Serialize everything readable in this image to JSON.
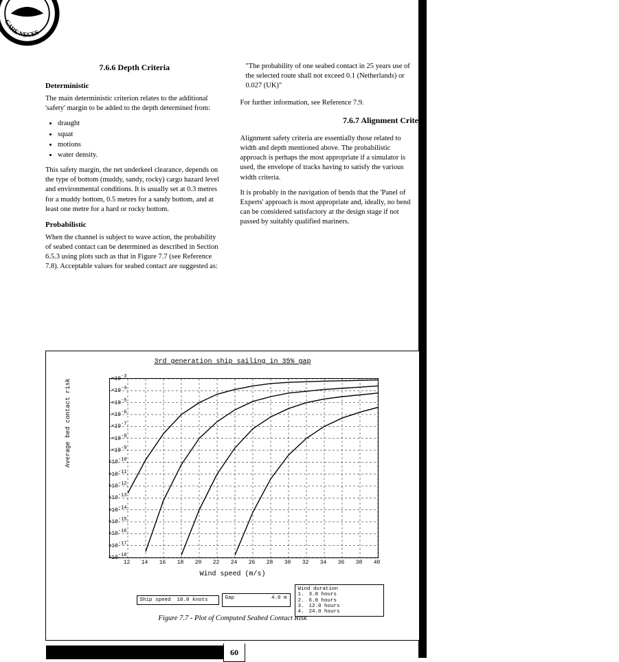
{
  "sections": {
    "depth": {
      "number": "7.6.6 Depth Criteria",
      "deterministic_heading": "Deterministic",
      "deterministic_p1": "The main deterministic criterion relates to the additional 'safety' margin to be added to the depth determined from:",
      "bullets": [
        "draught",
        "squat",
        "motions",
        "water density."
      ],
      "deterministic_p2": "This safety margin, the net underkeel clearance, depends on the type of bottom (muddy, sandy, rocky) cargo hazard level and environmental conditions. It is usually set at 0.3 metres for a muddy bottom, 0.5 metres for a sandy bottom, and at least one metre for a hard or rocky bottom.",
      "probabilistic_heading": "Probabilistic",
      "probabilistic_p1": "When the channel is subject to wave action, the probability of seabed contact can be determined as described in Section 6.5.3 using plots such as that in Figure 7.7 (see Reference 7.8). Acceptable values for seabed contact are suggested as:",
      "quote": "\"The probability of one seabed contact in 25 years use of the selected route shall not exceed 0.1 (Netherlands) or 0.027 (UK)\"",
      "ref_line": "For further information, see Reference 7.9."
    },
    "alignment": {
      "number": "7.6.7 Alignment Crite",
      "p1": "Alignment safety criteria are essentially those related to width and depth mentioned above. The probabilistic approach is perhaps the most appropriate if a simulator is used, the envelope of tracks having to satisfy the various width criteria.",
      "p2": "It is probably in the navigation of bends that the 'Panel of Experts' approach is most appropriate and, ideally, no bend can be considered satisfactory at the design stage if not passed by suitably qualified mariners."
    }
  },
  "figure": {
    "title": "3rd generation ship sailing in 35% gap",
    "caption": "Figure 7.7 - Plot of Computed Seabed Contact Risk",
    "chart": {
      "type": "line",
      "xlabel": "Wind speed (m/s)",
      "ylabel": "Average bed contact risk",
      "xlim": [
        10,
        40
      ],
      "xticks": [
        12,
        14,
        16,
        18,
        20,
        22,
        24,
        26,
        28,
        30,
        32,
        34,
        36,
        38,
        40
      ],
      "y_exponents": [
        -3,
        -4,
        -5,
        -6,
        -7,
        -8,
        -9,
        -10,
        -11,
        -12,
        -13,
        -14,
        -15,
        -16,
        -17,
        -18
      ],
      "line_color": "#000000",
      "grid_color": "#000000",
      "grid_dash": "3,3",
      "background_color": "#ffffff",
      "line_width": 1.4,
      "series": [
        {
          "label": "3.0 hours",
          "points": [
            [
              12,
              -12.6
            ],
            [
              14,
              -9.8
            ],
            [
              16,
              -7.6
            ],
            [
              18,
              -6.0
            ],
            [
              20,
              -5.0
            ],
            [
              22,
              -4.3
            ],
            [
              24,
              -3.9
            ],
            [
              26,
              -3.6
            ],
            [
              28,
              -3.4
            ],
            [
              30,
              -3.3
            ],
            [
              34,
              -3.2
            ],
            [
              40,
              -3.1
            ]
          ]
        },
        {
          "label": "6.0 hours",
          "points": [
            [
              14,
              -17.5
            ],
            [
              16,
              -13.2
            ],
            [
              18,
              -10.2
            ],
            [
              20,
              -8.0
            ],
            [
              22,
              -6.6
            ],
            [
              24,
              -5.6
            ],
            [
              26,
              -4.9
            ],
            [
              28,
              -4.5
            ],
            [
              30,
              -4.2
            ],
            [
              34,
              -3.9
            ],
            [
              40,
              -3.6
            ]
          ]
        },
        {
          "label": "12.0 hours",
          "points": [
            [
              18,
              -17.8
            ],
            [
              20,
              -14.0
            ],
            [
              22,
              -11.0
            ],
            [
              24,
              -8.8
            ],
            [
              26,
              -7.2
            ],
            [
              28,
              -6.2
            ],
            [
              30,
              -5.5
            ],
            [
              32,
              -5.0
            ],
            [
              34,
              -4.7
            ],
            [
              36,
              -4.5
            ],
            [
              40,
              -4.2
            ]
          ]
        },
        {
          "label": "24.0 hours",
          "points": [
            [
              24,
              -17.8
            ],
            [
              26,
              -14.2
            ],
            [
              28,
              -11.4
            ],
            [
              30,
              -9.4
            ],
            [
              32,
              -8.0
            ],
            [
              34,
              -7.0
            ],
            [
              36,
              -6.3
            ],
            [
              38,
              -5.8
            ],
            [
              40,
              -5.4
            ]
          ]
        }
      ]
    },
    "params": {
      "ship_speed_label": "Ship speed",
      "ship_speed_value": "10.0 knots",
      "gap_label": "Gap",
      "gap_value": "4.0 m",
      "wind_duration_label": "Wind duration",
      "wind_duration_rows": [
        {
          "n": "1.",
          "v": "3.0 hours"
        },
        {
          "n": "2.",
          "v": "6.0 hours"
        },
        {
          "n": "3.",
          "v": "12.0 hours"
        },
        {
          "n": "4.",
          "v": "24.0 hours"
        }
      ]
    }
  },
  "page_number": "60"
}
